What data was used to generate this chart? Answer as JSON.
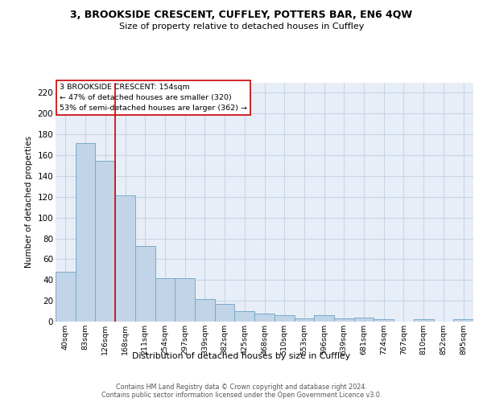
{
  "title": "3, BROOKSIDE CRESCENT, CUFFLEY, POTTERS BAR, EN6 4QW",
  "subtitle": "Size of property relative to detached houses in Cuffley",
  "xlabel": "Distribution of detached houses by size in Cuffley",
  "ylabel": "Number of detached properties",
  "footer1": "Contains HM Land Registry data © Crown copyright and database right 2024.",
  "footer2": "Contains public sector information licensed under the Open Government Licence v3.0.",
  "annotation_line1": "3 BROOKSIDE CRESCENT: 154sqm",
  "annotation_line2": "← 47% of detached houses are smaller (320)",
  "annotation_line3": "53% of semi-detached houses are larger (362) →",
  "bar_color": "#c2d4e8",
  "bar_edge_color": "#7aaac8",
  "grid_color": "#c8d4e4",
  "background_color": "#e8eef8",
  "categories": [
    "40sqm",
    "83sqm",
    "126sqm",
    "168sqm",
    "211sqm",
    "254sqm",
    "297sqm",
    "339sqm",
    "382sqm",
    "425sqm",
    "468sqm",
    "510sqm",
    "553sqm",
    "596sqm",
    "639sqm",
    "681sqm",
    "724sqm",
    "767sqm",
    "810sqm",
    "852sqm",
    "895sqm"
  ],
  "heights": [
    48,
    172,
    155,
    121,
    73,
    42,
    42,
    22,
    17,
    10,
    8,
    6,
    3,
    6,
    3,
    4,
    2,
    0,
    2,
    0,
    2
  ],
  "red_line_bar_index": 3,
  "ylim": [
    0,
    230
  ],
  "yticks": [
    0,
    20,
    40,
    60,
    80,
    100,
    120,
    140,
    160,
    180,
    200,
    220
  ]
}
